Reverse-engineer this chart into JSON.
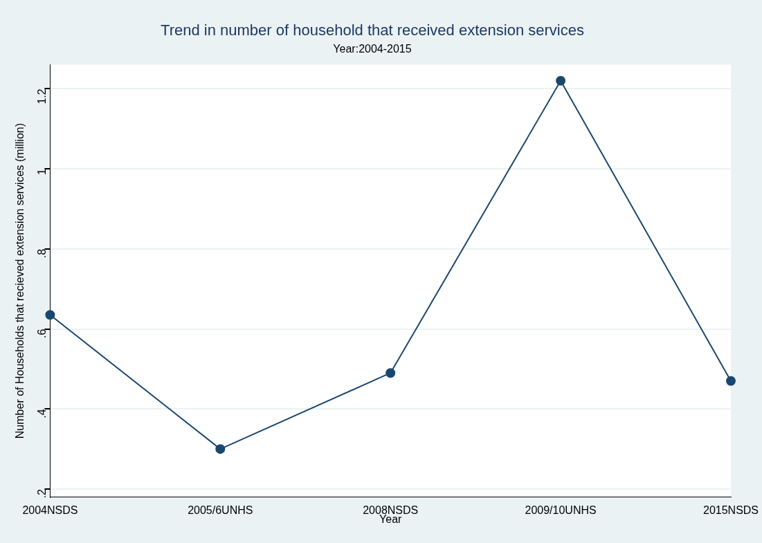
{
  "chart_data": {
    "type": "line",
    "title": "Trend in number of household that received extension services",
    "subtitle": "Year:2004-2015",
    "xlabel": "Year",
    "ylabel": "Number of Households that recieved extension services (million)",
    "categories": [
      "2004NSDS",
      "2005/6UNHS",
      "2008NSDS",
      "2009/10UNHS",
      "2015NSDS"
    ],
    "series": [
      {
        "color": "#1a476f",
        "values": [
          0.635,
          0.3,
          0.49,
          1.22,
          0.47
        ]
      }
    ],
    "ylim": [
      0.18,
      1.26
    ],
    "yticks": [
      {
        "value": 0.2,
        "label": ".2"
      },
      {
        "value": 0.4,
        "label": ".4"
      },
      {
        "value": 0.6,
        "label": ".6"
      },
      {
        "value": 0.8,
        "label": ".8"
      },
      {
        "value": 1,
        "label": "1"
      },
      {
        "value": 1.2,
        "label": "1.2"
      }
    ],
    "grid": "y",
    "legend": false,
    "marker": "circle",
    "line_style": "solid"
  }
}
